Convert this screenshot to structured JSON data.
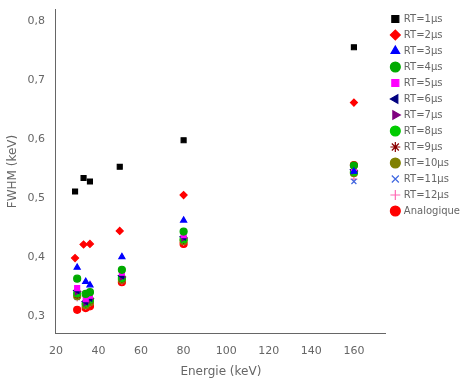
{
  "chart_data": {
    "type": "scatter",
    "x_label": "Energie (keV)",
    "y_label": "FWHM (keV)",
    "xlim": [
      20,
      175
    ],
    "ylim": [
      0.27,
      0.82
    ],
    "xticks": [
      20,
      40,
      60,
      80,
      100,
      120,
      140,
      160
    ],
    "yticks": [
      {
        "value": 0.3,
        "label": "0,3"
      },
      {
        "value": 0.4,
        "label": "0,4"
      },
      {
        "value": 0.5,
        "label": "0,5"
      },
      {
        "value": 0.6,
        "label": "0,6"
      },
      {
        "value": 0.7,
        "label": "0,7"
      },
      {
        "value": 0.8,
        "label": "0,8"
      }
    ],
    "grid": false,
    "legend": "right",
    "series": [
      {
        "name": "RT=1μs",
        "color": "#000000",
        "marker": "square",
        "x": [
          29,
          33,
          36,
          50,
          80,
          160
        ],
        "values": [
          0.511,
          0.534,
          0.528,
          0.553,
          0.598,
          0.756
        ]
      },
      {
        "name": "RT=2μs",
        "color": "#ff0000",
        "marker": "diamond",
        "x": [
          29,
          33,
          36,
          50,
          80,
          160
        ],
        "values": [
          0.398,
          0.421,
          0.422,
          0.444,
          0.505,
          0.662
        ]
      },
      {
        "name": "RT=3μs",
        "color": "#0000ff",
        "marker": "triangle-up",
        "x": [
          30,
          34,
          36,
          51,
          80,
          160
        ],
        "values": [
          0.382,
          0.358,
          0.352,
          0.4,
          0.462,
          0.545
        ]
      },
      {
        "name": "RT=4μs",
        "color": "#00aa00",
        "marker": "circle",
        "x": [
          30,
          34,
          36,
          51,
          80,
          160
        ],
        "values": [
          0.363,
          0.337,
          0.34,
          0.378,
          0.443,
          0.555
        ]
      },
      {
        "name": "RT=5μs",
        "color": "#ff00ff",
        "marker": "square",
        "x": [
          30,
          34,
          36,
          51,
          80,
          160
        ],
        "values": [
          0.347,
          0.328,
          0.334,
          0.373,
          0.437,
          0.551
        ]
      },
      {
        "name": "RT=6μs",
        "color": "#000080",
        "marker": "triangle-left",
        "x": [
          30,
          34,
          36,
          51,
          80,
          160
        ],
        "values": [
          0.343,
          0.324,
          0.33,
          0.368,
          0.434,
          0.548
        ]
      },
      {
        "name": "RT=7μs",
        "color": "#800080",
        "marker": "triangle-right",
        "x": [
          30,
          34,
          36,
          51,
          80,
          160
        ],
        "values": [
          0.341,
          0.322,
          0.329,
          0.366,
          0.432,
          0.546
        ]
      },
      {
        "name": "RT=8μs",
        "color": "#00cc00",
        "marker": "circle",
        "x": [
          30,
          34,
          36,
          51,
          80,
          160
        ],
        "values": [
          0.338,
          0.321,
          0.327,
          0.364,
          0.43,
          0.544
        ]
      },
      {
        "name": "RT=9μs",
        "color": "#8b0000",
        "marker": "star",
        "x": [
          30,
          34,
          36,
          51,
          80,
          160
        ],
        "values": [
          0.335,
          0.32,
          0.325,
          0.362,
          0.428,
          0.543
        ]
      },
      {
        "name": "RT=10μs",
        "color": "#808000",
        "marker": "circle",
        "x": [
          30,
          34,
          36,
          51,
          80,
          160
        ],
        "values": [
          0.333,
          0.318,
          0.323,
          0.361,
          0.427,
          0.542
        ]
      },
      {
        "name": "RT=11μs",
        "color": "#4169e1",
        "marker": "x",
        "x": [
          30,
          34,
          36,
          51,
          80,
          160
        ],
        "values": [
          0.331,
          0.317,
          0.322,
          0.36,
          0.426,
          0.528
        ]
      },
      {
        "name": "RT=12μs",
        "color": "#ff69b4",
        "marker": "plus",
        "x": [
          30,
          34,
          36,
          51,
          80,
          160
        ],
        "values": [
          0.33,
          0.316,
          0.321,
          0.359,
          0.425,
          0.532
        ]
      },
      {
        "name": "Analogique",
        "color": "#ff0000",
        "marker": "circle",
        "x": [
          30,
          34,
          36,
          51,
          80,
          160
        ],
        "values": [
          0.31,
          0.313,
          0.316,
          0.357,
          0.422,
          0.556
        ]
      }
    ]
  }
}
